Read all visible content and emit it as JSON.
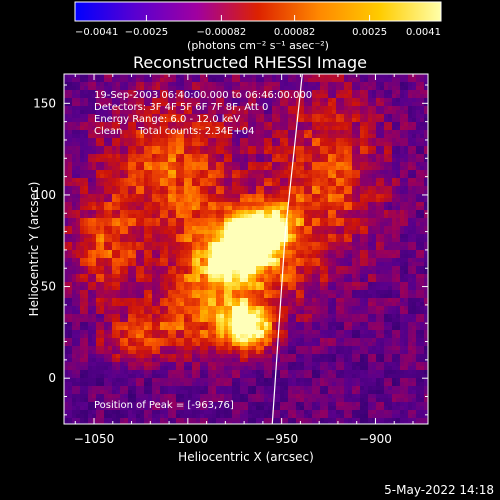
{
  "chart_data": {
    "type": "heatmap",
    "title": "Reconstructed RHESSI Image",
    "xlabel": "Heliocentric X (arcsec)",
    "ylabel": "Heliocentric Y (arcsec)",
    "xlim": [
      -1066,
      -872
    ],
    "ylim": [
      -25,
      166
    ],
    "x_ticks": [
      -1050,
      -1000,
      -950,
      -900
    ],
    "x_tick_labels": [
      "−1050",
      "−1000",
      "−950",
      "−900"
    ],
    "y_ticks": [
      0,
      50,
      100,
      150
    ],
    "y_tick_labels": [
      "0",
      "50",
      "100",
      "150"
    ],
    "colorbar": {
      "min": -0.0041,
      "max": 0.0041,
      "tick_values": [
        -0.0041,
        -0.0025,
        -0.00082,
        0.00082,
        0.0025,
        0.0041
      ],
      "tick_labels": [
        "−0.0041",
        "−0.0025",
        "−0.00082",
        "0.00082",
        "0.0025",
        "0.0041"
      ],
      "unit_label": "(photons cm⁻² s⁻¹ asec⁻²)",
      "colormap_stops": [
        "#0000ff",
        "#5a00d0",
        "#a000a0",
        "#dd2200",
        "#ff8800",
        "#ffcc00",
        "#ffffaa"
      ]
    },
    "annotations": [
      "19-Sep-2003 06:40:00.000 to 06:46:00.000",
      "Detectors: 3F 4F 5F 6F 7F 8F, Att 0",
      "Energy Range: 6.0 - 12.0 keV",
      "Clean     Total counts: 2.34E+04"
    ],
    "peak_label": "Position of Peak = [-963,76]",
    "peak": {
      "x": -963,
      "y": 76
    },
    "sources": [
      {
        "x": -965,
        "y": 76,
        "sx": 14,
        "sy": 9,
        "amp": 1.0,
        "rot": -35
      },
      {
        "x": -975,
        "y": 60,
        "sx": 24,
        "sy": 22,
        "amp": 0.55,
        "rot": 0
      },
      {
        "x": -968,
        "y": 27,
        "sx": 9,
        "sy": 8,
        "amp": 0.75,
        "rot": 0
      },
      {
        "x": -1010,
        "y": 115,
        "sx": 26,
        "sy": 28,
        "amp": 0.42,
        "rot": 0
      },
      {
        "x": -1045,
        "y": 70,
        "sx": 14,
        "sy": 20,
        "amp": 0.35,
        "rot": 0
      },
      {
        "x": -925,
        "y": 110,
        "sx": 22,
        "sy": 35,
        "amp": 0.38,
        "rot": 0
      },
      {
        "x": -1000,
        "y": 30,
        "sx": 22,
        "sy": 14,
        "amp": 0.3,
        "rot": 0
      },
      {
        "x": -1030,
        "y": 20,
        "sx": 12,
        "sy": 8,
        "amp": 0.3,
        "rot": 0
      }
    ],
    "limb_line": {
      "points": [
        [
          -955,
          -25
        ],
        [
          -948,
          80
        ],
        [
          -939,
          166
        ]
      ]
    },
    "footer_timestamp": "5-May-2022 14:18"
  }
}
